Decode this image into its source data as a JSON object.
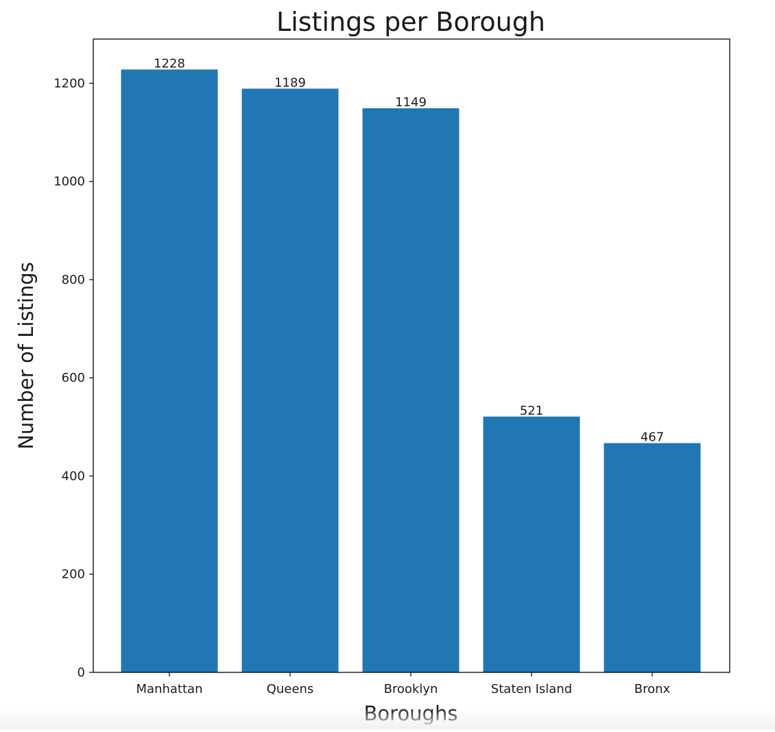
{
  "chart_data": {
    "type": "bar",
    "title": "Listings per Borough",
    "xlabel": "Boroughs",
    "ylabel": "Number of Listings",
    "categories": [
      "Manhattan",
      "Queens",
      "Brooklyn",
      "Staten Island",
      "Bronx"
    ],
    "values": [
      1228,
      1189,
      1149,
      521,
      467
    ],
    "data_labels": [
      "1228",
      "1189",
      "1149",
      "521",
      "467"
    ],
    "ylim": [
      0,
      1290
    ],
    "yticks": [
      0,
      200,
      400,
      600,
      800,
      1000,
      1200
    ],
    "ytick_labels": [
      "0",
      "200",
      "400",
      "600",
      "800",
      "1000",
      "1200"
    ],
    "bar_color": "#2077b4",
    "grid": false,
    "legend": "none"
  }
}
